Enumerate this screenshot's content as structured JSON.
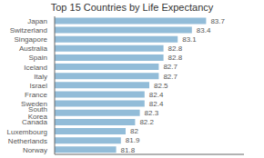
{
  "chart_data": {
    "type": "bar",
    "orientation": "horizontal",
    "title": "Top 15 Countries by Life Expectancy",
    "categories": [
      "Norway",
      "Netherlands",
      "Luxembourg",
      "Canada",
      "South Korea",
      "Sweden",
      "France",
      "Israel",
      "Italy",
      "Iceland",
      "Spain",
      "Australia",
      "Singapore",
      "Switzerland",
      "Japan"
    ],
    "values": [
      81.8,
      81.9,
      82.0,
      82.2,
      82.3,
      82.4,
      82.4,
      82.5,
      82.7,
      82.7,
      82.8,
      82.8,
      83.1,
      83.4,
      83.7
    ],
    "color": "#92bcd8",
    "xlim": [
      80.5,
      84.5
    ],
    "xticks": [],
    "grid": false,
    "data_labels": true,
    "tick_labels": "y"
  }
}
